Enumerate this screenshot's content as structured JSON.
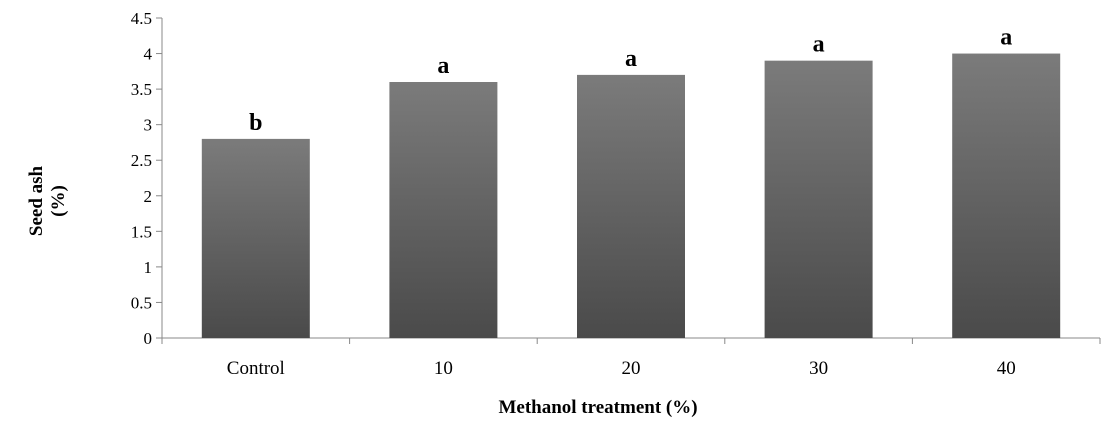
{
  "chart_data": {
    "type": "bar",
    "title": "",
    "xlabel": "Methanol treatment (%)",
    "ylabel_lines": [
      "Seed ash",
      "(%)"
    ],
    "categories": [
      "Control",
      "10",
      "20",
      "30",
      "40"
    ],
    "values": [
      2.8,
      3.6,
      3.7,
      3.9,
      4.0
    ],
    "significance_letters": [
      "b",
      "a",
      "a",
      "a",
      "a"
    ],
    "ylim": [
      0,
      4.5
    ],
    "y_ticks": [
      "0",
      "0.5",
      "1",
      "1.5",
      "2",
      "2.5",
      "3",
      "3.5",
      "4",
      "4.5"
    ],
    "grid": false,
    "legend": "none",
    "bar_gradient_top": "#7b7b7b",
    "bar_gradient_bottom": "#4a4a4a",
    "axis_color": "#888888"
  }
}
